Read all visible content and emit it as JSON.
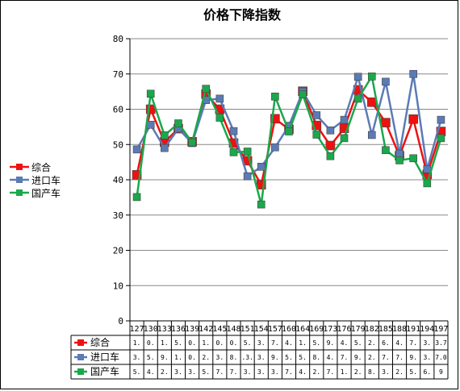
{
  "chart_data": {
    "type": "line",
    "title": "价格下降指数",
    "ylim": [
      0,
      80
    ],
    "yticks": [
      "0",
      "10",
      "20",
      "30",
      "40",
      "50",
      "60",
      "70",
      "80"
    ],
    "grid": true,
    "legend_position": "left",
    "categories": [
      "127",
      "130",
      "133",
      "136",
      "139",
      "142",
      "145",
      "148",
      "151",
      "154",
      "157",
      "160",
      "164",
      "169",
      "173",
      "176",
      "179",
      "182",
      "185",
      "188",
      "191",
      "194",
      "197"
    ],
    "series": [
      {
        "name": "综合",
        "color": "#ee1111",
        "marker_size": 11,
        "values": [
          41.4,
          60.0,
          50.7,
          54.5,
          50.8,
          64.3,
          60.0,
          50.4,
          45.4,
          38.6,
          57.3,
          54.3,
          65.1,
          55.4,
          49.7,
          54.6,
          65.5,
          62.0,
          56.2,
          46.8,
          57.2,
          41.5,
          53.7
        ],
        "table_text": [
          "1.",
          "0.",
          "1.",
          "5.",
          "0.",
          "1.",
          "0.",
          "0.",
          "5.",
          "3.",
          "7.",
          "4.",
          "1.",
          "5.",
          "9.",
          "4.",
          "5.",
          "2.",
          "6.",
          "4.",
          "7.",
          "3.",
          "3.7"
        ]
      },
      {
        "name": "进口车",
        "color": "#5b7bb5",
        "marker_size": 9,
        "values": [
          48.6,
          55.6,
          49.0,
          54.5,
          50.4,
          62.6,
          63.0,
          53.8,
          41.0,
          43.7,
          49.2,
          55.3,
          65.0,
          58.3,
          54.0,
          57.0,
          69.2,
          52.7,
          67.8,
          47.4,
          70.0,
          43.0,
          57.0
        ],
        "table_text": [
          "3.",
          "5.",
          "9.",
          "1.",
          "0.",
          "2.",
          "3.",
          "8.",
          ".3.",
          "3.",
          "9.",
          "5.",
          "5.",
          "8.",
          "4.",
          "7.",
          "9.",
          "2.",
          "7.",
          "7.",
          "9.",
          "3.",
          "7.0"
        ]
      },
      {
        "name": "国产车",
        "color": "#1aa84c",
        "marker_size": 9,
        "values": [
          35.1,
          64.4,
          52.6,
          56.0,
          50.6,
          65.8,
          57.6,
          47.8,
          48.0,
          33.0,
          63.6,
          53.7,
          64.2,
          52.8,
          46.7,
          51.8,
          63.0,
          69.3,
          48.4,
          45.5,
          46.1,
          39.0,
          51.8
        ],
        "table_text": [
          "5.",
          "4.",
          "2.",
          "3.",
          "3.",
          "5.",
          "7.",
          "7.",
          "3.",
          "3.",
          "3.",
          "7.",
          "4.",
          "2.",
          "7.",
          "1.",
          "2.",
          "8.",
          "3.",
          "2.",
          "5.",
          "6.",
          "9"
        ]
      }
    ]
  }
}
